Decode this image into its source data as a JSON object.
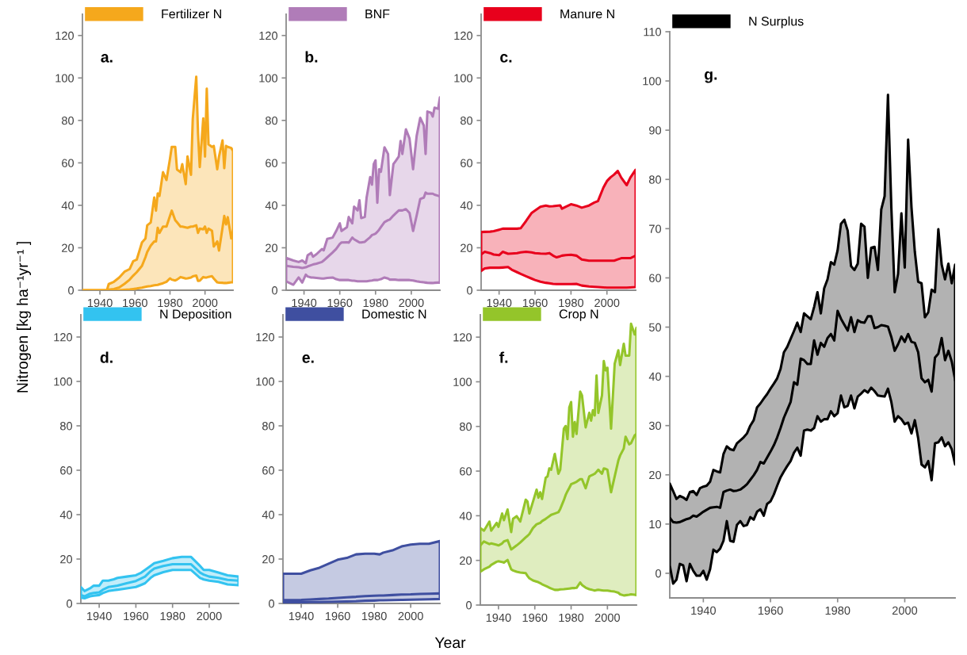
{
  "chart_data": [
    {
      "type": "line",
      "title": "a.",
      "ylabel": "Nitrogen [kg ha⁻¹yr⁻¹ ]",
      "legend": "top left",
      "xlim": [
        1930,
        2016
      ],
      "ylim": [
        0,
        130
      ],
      "xticks": [
        1940,
        1960,
        1980,
        2000
      ],
      "yticks": [
        0,
        20,
        40,
        60,
        80,
        100,
        120
      ],
      "x": [
        1930,
        1935,
        1940,
        1944,
        1945,
        1948,
        1951,
        1954,
        1957,
        1959,
        1961,
        1964,
        1966,
        1967,
        1969,
        1971,
        1972,
        1973,
        1974,
        1976,
        1978,
        1980,
        1981,
        1983,
        1984,
        1986,
        1987,
        1989,
        1990,
        1992,
        1993,
        1995,
        1996,
        1997,
        1999,
        2000,
        2001,
        2002,
        2004,
        2005,
        2007,
        2008,
        2010,
        2011,
        2012,
        2013,
        2015,
        2016
      ],
      "series": [
        {
          "name": "Fertilizer N",
          "color": "#f5a81c",
          "values": [
            0,
            0,
            0,
            0,
            0.3,
            0.6,
            1.3,
            3,
            5,
            6.9,
            8.5,
            11.5,
            15.6,
            18,
            21,
            23,
            23,
            29.4,
            27,
            30,
            30,
            35,
            37.5,
            33,
            32,
            30,
            30,
            29.6,
            29.4,
            30,
            30,
            30.6,
            27,
            29,
            28.7,
            30,
            27,
            29,
            28,
            20.6,
            23,
            18.7,
            29.4,
            35,
            31,
            34.4,
            24.4,
            28
          ],
          "lower": [
            0,
            0,
            0,
            0,
            0,
            0,
            0,
            0.2,
            0.4,
            0.6,
            0.8,
            1.2,
            1.6,
            1.8,
            2,
            2.3,
            2.4,
            2.5,
            2.8,
            3.3,
            4,
            5.6,
            5,
            4.6,
            5,
            6.2,
            6,
            5.5,
            5.6,
            6,
            6.5,
            6.9,
            4.4,
            4.5,
            6.2,
            6,
            6,
            6.3,
            6.6,
            5.5,
            3.7,
            3.6,
            3.5,
            3.4,
            3.4,
            3.5,
            3.7,
            3.75
          ],
          "upper": [
            0,
            0,
            0,
            0,
            2.9,
            4,
            6,
            8.7,
            10,
            13.7,
            14.4,
            22.5,
            24.4,
            30.6,
            31.9,
            43.7,
            37.5,
            45.6,
            44.4,
            55.6,
            51.9,
            61.9,
            67.5,
            67.5,
            56.9,
            55.6,
            59.4,
            50,
            63,
            54.4,
            80.6,
            100.6,
            74,
            58,
            81,
            63,
            95,
            68.7,
            67.5,
            68,
            57,
            63,
            70.6,
            57.5,
            68,
            67.5,
            67,
            65.6
          ]
        }
      ]
    },
    {
      "type": "line",
      "title": "b.",
      "legend": "top left",
      "xlim": [
        1930,
        2016
      ],
      "ylim": [
        0,
        130
      ],
      "xticks": [
        1940,
        1960,
        1980,
        2000
      ],
      "yticks": [
        0,
        20,
        40,
        60,
        80,
        100,
        120
      ],
      "x": [
        1930,
        1934,
        1937,
        1939,
        1941,
        1942,
        1944,
        1945,
        1947,
        1950,
        1951,
        1953,
        1956,
        1958,
        1960,
        1961,
        1964,
        1965,
        1967,
        1968,
        1970,
        1971,
        1972,
        1974,
        1975,
        1977,
        1978,
        1979,
        1980,
        1981,
        1982,
        1983,
        1985,
        1987,
        1988,
        1990,
        1991,
        1993,
        1994,
        1995,
        1997,
        1999,
        2001,
        2003,
        2005,
        2007,
        2008,
        2009,
        2011,
        2012,
        2013,
        2015,
        2016
      ],
      "series": [
        {
          "name": "BNF",
          "color": "#b07cb8",
          "values": [
            11.5,
            11,
            10.8,
            10.5,
            10.8,
            11.2,
            11.8,
            12.1,
            12.5,
            13.3,
            14,
            15.5,
            17.8,
            19.5,
            21.8,
            22.5,
            22.6,
            22.4,
            24.8,
            24,
            23,
            22.5,
            22.5,
            22.8,
            23.6,
            25,
            26,
            26.3,
            26.7,
            27.5,
            28.5,
            29.7,
            32.1,
            33,
            33.3,
            35.2,
            36,
            37.6,
            37.6,
            37.6,
            38.2,
            36.4,
            27.9,
            35.2,
            43,
            43.6,
            46,
            45.5,
            45.5,
            45.5,
            45,
            44.5,
            44.2
          ],
          "lower": [
            4.2,
            2.6,
            6,
            3.6,
            7.3,
            6.5,
            6,
            6,
            5.8,
            5.5,
            5.5,
            5.8,
            6,
            5.2,
            4.8,
            4.8,
            4.8,
            4.8,
            4.5,
            4.5,
            4.2,
            4.2,
            4.2,
            4.2,
            4.2,
            4.5,
            4.6,
            4.8,
            4.8,
            4.8,
            5,
            5.2,
            6,
            5.5,
            5,
            5,
            5,
            4.8,
            4.8,
            4.8,
            4.8,
            4.8,
            4.6,
            4.2,
            3.9,
            3.7,
            3.6,
            3.5,
            3.4,
            3.4,
            3.5,
            3.6,
            3.6
          ],
          "upper": [
            15.2,
            14,
            13.3,
            14,
            12.7,
            16.4,
            17.6,
            15.8,
            17,
            19.4,
            18.8,
            24.2,
            24.8,
            27.9,
            31.5,
            27.9,
            29.7,
            34.5,
            31.5,
            39.4,
            37.6,
            42.4,
            34,
            34.5,
            43.6,
            53.3,
            49.7,
            59.4,
            61.2,
            41.2,
            57,
            55.8,
            67.3,
            64.2,
            44.8,
            59.4,
            60.6,
            63,
            70.3,
            64.2,
            75.8,
            71.5,
            57,
            72.7,
            81.2,
            77.6,
            64.2,
            84.2,
            83.6,
            81.8,
            86,
            85.5,
            90.9
          ]
        }
      ]
    },
    {
      "type": "line",
      "title": "c.",
      "legend": "top left",
      "xlim": [
        1930,
        2016
      ],
      "ylim": [
        0,
        130
      ],
      "xticks": [
        1940,
        1960,
        1980,
        2000
      ],
      "yticks": [
        0,
        20,
        40,
        60,
        80,
        100,
        120
      ],
      "x": [
        1930,
        1932,
        1935,
        1937,
        1940,
        1942,
        1945,
        1947,
        1950,
        1952,
        1955,
        1958,
        1960,
        1963,
        1966,
        1968,
        1970,
        1972,
        1974,
        1975,
        1977,
        1980,
        1983,
        1986,
        1990,
        1993,
        1995,
        1998,
        2000,
        2002,
        2004,
        2006,
        2008,
        2011,
        2013,
        2016
      ],
      "series": [
        {
          "name": "Manure N",
          "color": "#e8001c",
          "values": [
            16.9,
            18.1,
            17.5,
            16.8,
            16.5,
            18.1,
            17.2,
            17.3,
            17.5,
            17.8,
            18.1,
            17.8,
            17.5,
            17.3,
            17.2,
            17.5,
            16.3,
            15.5,
            16,
            16.3,
            16.5,
            16.7,
            16.3,
            14.5,
            13.9,
            13.9,
            13.9,
            13.9,
            13.9,
            13.9,
            13.9,
            14.5,
            15.1,
            15.1,
            15.1,
            16.3
          ],
          "lower": [
            9.1,
            10.3,
            10.6,
            10.6,
            10.6,
            10.7,
            10.9,
            9.7,
            8.5,
            7.7,
            6.6,
            5.5,
            4.8,
            4,
            3.5,
            3.3,
            3,
            2.9,
            2.9,
            2.9,
            2.9,
            2.9,
            3,
            2.2,
            1.8,
            1.6,
            1.5,
            1.3,
            1.2,
            1.2,
            1.2,
            1.2,
            1.2,
            1.2,
            1.3,
            1.5
          ],
          "upper": [
            27.4,
            27.5,
            27.6,
            27.8,
            28.5,
            29,
            29,
            29,
            29,
            29.2,
            32.6,
            36.3,
            37.5,
            39.3,
            39.9,
            39.5,
            39.6,
            39.8,
            40,
            38.4,
            39.3,
            40.5,
            39.9,
            38.9,
            39.9,
            41.3,
            42,
            48.3,
            51.4,
            53.2,
            54.5,
            56.2,
            53,
            49.5,
            53,
            56.8
          ]
        }
      ]
    },
    {
      "type": "line",
      "title": "d.",
      "legend": "top left",
      "xlim": [
        1930,
        2016
      ],
      "ylim": [
        0,
        130
      ],
      "xticks": [
        1940,
        1960,
        1980,
        2000
      ],
      "yticks": [
        0,
        20,
        40,
        60,
        80,
        100,
        120
      ],
      "x": [
        1930,
        1932,
        1935,
        1937,
        1940,
        1942,
        1945,
        1948,
        1950,
        1955,
        1960,
        1963,
        1965,
        1968,
        1970,
        1975,
        1980,
        1985,
        1990,
        1995,
        1997,
        2000,
        2005,
        2010,
        2016
      ],
      "series": [
        {
          "name": "N Deposition",
          "color": "#33c3f0",
          "values": [
            3.8,
            3.2,
            4.4,
            4.7,
            5,
            6.2,
            7.4,
            7.8,
            8,
            9.1,
            10.1,
            11.3,
            12.1,
            14.5,
            15.7,
            16.9,
            17.7,
            17.7,
            17.7,
            13.9,
            13,
            12.1,
            11.5,
            10.6,
            10.3
          ],
          "lower": [
            2.6,
            2.3,
            3.2,
            3.5,
            3.8,
            4.7,
            5.6,
            6,
            6.2,
            6.8,
            7.4,
            8.4,
            9.1,
            11.5,
            12.7,
            14.1,
            15.1,
            15.1,
            15.1,
            11.5,
            10.8,
            10.3,
            9.7,
            8.6,
            8.2
          ],
          "upper": [
            7.4,
            5.6,
            6.8,
            8,
            8,
            10.3,
            10.3,
            10.9,
            11.5,
            12.1,
            12.7,
            13.9,
            15.1,
            16.9,
            18.1,
            19.2,
            20.4,
            21,
            21,
            16.9,
            15.1,
            15.1,
            13.9,
            12.7,
            12.1
          ]
        }
      ]
    },
    {
      "type": "line",
      "title": "e.",
      "xlabel": "Year",
      "legend": "top left",
      "xlim": [
        1930,
        2016
      ],
      "ylim": [
        0,
        130
      ],
      "xticks": [
        1940,
        1960,
        1980,
        2000
      ],
      "yticks": [
        0,
        20,
        40,
        60,
        80,
        100,
        120
      ],
      "x": [
        1930,
        1935,
        1940,
        1945,
        1950,
        1955,
        1960,
        1965,
        1970,
        1975,
        1980,
        1983,
        1985,
        1990,
        1995,
        2000,
        2005,
        2010,
        2016
      ],
      "series": [
        {
          "name": "Domestic N",
          "color": "#3f4fa0",
          "values": [
            1.5,
            1.5,
            1.6,
            1.8,
            2,
            2.2,
            2.5,
            2.8,
            3,
            3.3,
            3.5,
            3.6,
            3.6,
            3.8,
            4,
            4.1,
            4.3,
            4.4,
            4.5
          ],
          "lower": [
            0.5,
            0.5,
            0.5,
            0.6,
            0.6,
            0.7,
            0.8,
            0.9,
            1,
            1.2,
            1.3,
            1.4,
            1.4,
            1.5,
            1.6,
            1.7,
            1.8,
            1.9,
            2
          ],
          "upper": [
            13.4,
            13.4,
            13.4,
            14.9,
            16.1,
            17.9,
            19.7,
            20.5,
            22.1,
            22.4,
            22.4,
            22.1,
            22.9,
            23.9,
            25.7,
            26.5,
            26.9,
            26.9,
            28.1
          ]
        }
      ]
    },
    {
      "type": "line",
      "title": "f.",
      "legend": "top left",
      "xlim": [
        1930,
        2016
      ],
      "ylim": [
        0,
        130
      ],
      "xticks": [
        1940,
        1960,
        1980,
        2000
      ],
      "yticks": [
        0,
        20,
        40,
        60,
        80,
        100,
        120
      ],
      "x": [
        1930,
        1932,
        1935,
        1936,
        1939,
        1940,
        1942,
        1943,
        1945,
        1947,
        1948,
        1950,
        1952,
        1955,
        1956,
        1957,
        1959,
        1961,
        1962,
        1963,
        1964,
        1966,
        1967,
        1968,
        1969,
        1971,
        1973,
        1974,
        1976,
        1977,
        1978,
        1979,
        1980,
        1981,
        1982,
        1983,
        1985,
        1986,
        1988,
        1990,
        1991,
        1992,
        1993,
        1994,
        1995,
        1997,
        1998,
        1999,
        2000,
        2002,
        2004,
        2006,
        2007,
        2009,
        2010,
        2012,
        2013,
        2015,
        2016
      ],
      "series": [
        {
          "name": "Crop N",
          "color": "#94c52a",
          "values": [
            26.7,
            28.5,
            27.3,
            27.6,
            27,
            26.7,
            27.6,
            28.5,
            29.1,
            24.9,
            25.5,
            26.7,
            28,
            30.3,
            31,
            31.8,
            34.5,
            36.2,
            36.5,
            36.8,
            37.6,
            38.6,
            39.2,
            39.8,
            40.4,
            41,
            41.6,
            43,
            47,
            49.3,
            51,
            52.5,
            54.1,
            54.5,
            54.8,
            55.2,
            56.4,
            56.4,
            52.3,
            57.6,
            58,
            58.4,
            58.8,
            59.7,
            60.6,
            58.8,
            61.2,
            61,
            60.6,
            50.5,
            57.6,
            64.7,
            67,
            70.1,
            75.4,
            72,
            72.5,
            76,
            76.6
          ],
          "lower": [
            14.9,
            16,
            17.2,
            18,
            19.4,
            19.6,
            19.3,
            19,
            20.2,
            16,
            15.5,
            14.9,
            14.6,
            14.3,
            13,
            12,
            11,
            10.5,
            10.2,
            9.8,
            9.3,
            8.6,
            8.2,
            7.8,
            7.4,
            6.8,
            6.8,
            7,
            7.1,
            7.2,
            7.3,
            7.4,
            7.5,
            7.6,
            7.6,
            7.7,
            10.1,
            9,
            7.8,
            7.1,
            6.9,
            6.7,
            6.5,
            6.7,
            6.8,
            6.6,
            6.5,
            6.5,
            6.5,
            6.2,
            6,
            5.5,
            4.8,
            4.3,
            4.4,
            4.6,
            4.8,
            4.6,
            4.4
          ],
          "upper": [
            34.5,
            33.3,
            37.4,
            33.3,
            36.8,
            35,
            41,
            38,
            42.8,
            32.7,
            38.6,
            39.8,
            37.4,
            47.2,
            46.3,
            41,
            46.3,
            51.7,
            48.1,
            50.5,
            47.5,
            57,
            57.6,
            61.2,
            60.6,
            67.7,
            58.8,
            60.6,
            79,
            80.2,
            74.3,
            88.5,
            90.9,
            75.4,
            82,
            76.6,
            95.6,
            93.9,
            79.6,
            86.1,
            82.6,
            87.3,
            84.9,
            102.8,
            86.1,
            93.9,
            109.3,
            105.1,
            106.3,
            79,
            108.1,
            114.1,
            107.5,
            117,
            111.7,
            111.7,
            126,
            121.2,
            124.2
          ]
        }
      ]
    },
    {
      "type": "line",
      "title": "g.",
      "legend": "top left",
      "xlim": [
        1930,
        2015
      ],
      "ylim": [
        -5,
        110
      ],
      "xticks": [
        1940,
        1960,
        1980,
        2000
      ],
      "yticks": [
        0,
        10,
        20,
        30,
        40,
        50,
        60,
        70,
        80,
        90,
        100,
        110
      ],
      "x": [
        1930,
        1931,
        1932,
        1933,
        1934,
        1935,
        1936,
        1937,
        1938,
        1939,
        1940,
        1941,
        1942,
        1943,
        1944,
        1945,
        1946,
        1947,
        1948,
        1949,
        1950,
        1951,
        1952,
        1953,
        1954,
        1955,
        1956,
        1957,
        1958,
        1959,
        1960,
        1961,
        1962,
        1963,
        1964,
        1965,
        1966,
        1967,
        1968,
        1969,
        1970,
        1971,
        1972,
        1973,
        1974,
        1975,
        1976,
        1977,
        1978,
        1979,
        1980,
        1981,
        1982,
        1983,
        1984,
        1985,
        1986,
        1987,
        1988,
        1989,
        1990,
        1991,
        1992,
        1993,
        1994,
        1995,
        1996,
        1997,
        1998,
        1999,
        2000,
        2001,
        2002,
        2003,
        2004,
        2005,
        2006,
        2007,
        2008,
        2009,
        2010,
        2011,
        2012,
        2013,
        2014,
        2015
      ],
      "series": [
        {
          "name": "N Surplus",
          "color": "#000000",
          "values": [
            11.3,
            10.4,
            10.3,
            10.4,
            10.7,
            11,
            11.2,
            11.7,
            11.5,
            12,
            12.5,
            12.9,
            13.3,
            13.4,
            13.5,
            13.3,
            16.5,
            16.8,
            17,
            16.7,
            16.8,
            17,
            17.5,
            18.1,
            19,
            19.9,
            21,
            22.6,
            22.3,
            23.5,
            24.7,
            26,
            27.6,
            29.5,
            31.6,
            33.2,
            34.8,
            38.8,
            38.3,
            43.6,
            43.3,
            42.5,
            42.5,
            47.3,
            44.4,
            46.8,
            46,
            47.8,
            48.6,
            47.3,
            53.3,
            51.7,
            50.5,
            49.3,
            52,
            49,
            51.4,
            51,
            50.9,
            52.2,
            52.2,
            49.8,
            50,
            50.4,
            50.3,
            50.1,
            48,
            45.2,
            46.5,
            48.1,
            47,
            48.6,
            47,
            46.8,
            44.9,
            39.6,
            38.8,
            39.3,
            36.9,
            43.8,
            44.6,
            47.8,
            43.3,
            45.2,
            43,
            39.3
          ],
          "lower": [
            1.6,
            -2.1,
            -1.3,
            1.9,
            1.6,
            -1.6,
            1.9,
            0.5,
            -0.5,
            -0.5,
            0.5,
            -1.3,
            0.8,
            4.8,
            4.3,
            5,
            6.6,
            10.6,
            6.6,
            6.4,
            9.8,
            10.6,
            9.6,
            9.8,
            11.4,
            10.9,
            12.5,
            13,
            11.7,
            14.1,
            14.6,
            16,
            17.8,
            19.5,
            20.7,
            21.8,
            22.8,
            24.5,
            25.5,
            23.9,
            29,
            29.2,
            29,
            29.5,
            31.9,
            30.8,
            31.3,
            31.3,
            32.9,
            31.9,
            32.5,
            36.1,
            33.7,
            34,
            36.1,
            33.5,
            35.9,
            36.5,
            37.2,
            36.7,
            37.7,
            37,
            36.1,
            36,
            35.9,
            37.5,
            34.8,
            30.8,
            31.9,
            31.3,
            30.3,
            30.6,
            28.4,
            31.1,
            27.4,
            22.1,
            21.5,
            22.8,
            18.9,
            26.4,
            26.6,
            27.6,
            25.8,
            26.6,
            25.2,
            22.1
          ],
          "upper": [
            18.2,
            16.7,
            15.1,
            15.7,
            15.4,
            14.9,
            16.5,
            16.7,
            15.9,
            17.3,
            17.6,
            17.8,
            18.6,
            21,
            20.7,
            20.5,
            24.2,
            25.8,
            25.2,
            25,
            26.4,
            27,
            27.6,
            28.4,
            30,
            31.1,
            33.7,
            34.5,
            35.5,
            36.4,
            37.5,
            38.5,
            39.6,
            41.5,
            44.9,
            46,
            47.6,
            49.2,
            50.9,
            49,
            52.8,
            52.2,
            51.6,
            54.1,
            57.1,
            52.8,
            57.9,
            59.7,
            63.2,
            62.7,
            65.6,
            71,
            71.8,
            69.6,
            62.4,
            61.6,
            62.9,
            71,
            70.4,
            60,
            66.1,
            66.3,
            61.6,
            73.9,
            76.6,
            97.2,
            74.4,
            57.1,
            60.8,
            73.1,
            62.1,
            88.1,
            74.4,
            65.3,
            59.2,
            58.9,
            52,
            53,
            57.6,
            57.1,
            69.9,
            62.7,
            59.7,
            62.9,
            58.9,
            62.7
          ]
        }
      ]
    }
  ]
}
